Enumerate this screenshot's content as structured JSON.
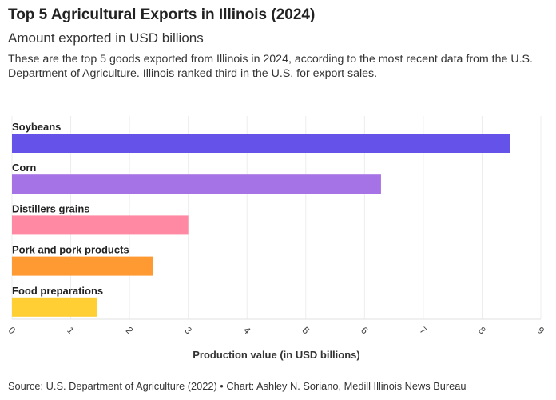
{
  "title": "Top 5 Agricultural Exports in Illinois (2024)",
  "subtitle": "Amount exported in USD billions",
  "description": "These are the top 5 goods exported from Illinois in 2024, according to the most recent data from the U.S. Department of Agriculture. Illinois ranked third in the U.S. for export sales.",
  "footer": "Source: U.S. Department of Agriculture (2022) • Chart: Ashley N. Soriano, Medill Illinois News Bureau",
  "chart_data": {
    "type": "bar",
    "orientation": "horizontal",
    "categories": [
      "Soybeans",
      "Corn",
      "Distillers grains",
      "Pork and pork products",
      "Food preparations"
    ],
    "values": [
      8.47,
      6.28,
      3.0,
      2.4,
      1.45
    ],
    "colors": [
      "#6452e9",
      "#a673e6",
      "#ff88a3",
      "#ff9a33",
      "#ffcf33"
    ],
    "xlabel": "Production value (in USD billions)",
    "xlim": [
      0,
      9
    ],
    "xticks": [
      "0",
      "1",
      "2",
      "3",
      "4",
      "5",
      "6",
      "7",
      "8",
      "9"
    ],
    "grid": true
  }
}
